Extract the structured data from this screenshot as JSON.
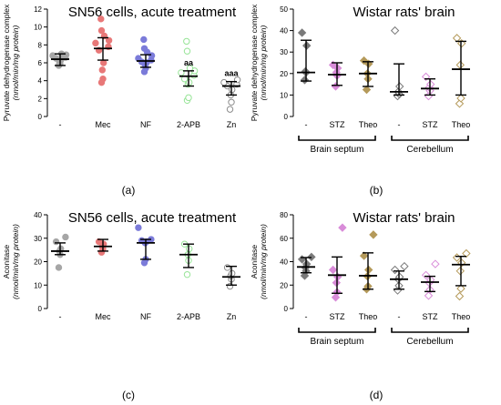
{
  "panel_labels": [
    "(a)",
    "(b)",
    "(c)",
    "(d)"
  ],
  "colors": {
    "control": "#a6a6a6",
    "mec": "#e87878",
    "nf": "#7b7bd9",
    "apb": "#97e497",
    "zn": "#8c8c8c",
    "dia_septum_ctrl": "#7a7a7a",
    "dia_stz": "#d98cd9",
    "dia_theo": "#b59a5a"
  },
  "chart_data": [
    {
      "id": "a",
      "type": "scatter",
      "title": "SN56 cells, acute treatment",
      "ylabel": "Pyruvate dehydrogenase complex",
      "ylabel_sub": "(nmol/min/mg protein)",
      "ylim": [
        0,
        12
      ],
      "yticks": [
        0,
        2,
        4,
        6,
        8,
        10,
        12
      ],
      "categories": [
        "-",
        "Mec",
        "NF",
        "2-APB",
        "Zn"
      ],
      "groups": [
        {
          "name": "-",
          "color": "#a6a6a6",
          "filled": true,
          "shape": "circle",
          "mean": 6.4,
          "lo": 5.7,
          "hi": 7.0,
          "points": [
            5.7,
            5.9,
            6.1,
            6.3,
            6.5,
            6.6,
            6.8,
            6.9,
            7.0
          ]
        },
        {
          "name": "Mec",
          "color": "#e87878",
          "filled": true,
          "shape": "circle",
          "mean": 7.6,
          "lo": 6.3,
          "hi": 8.8,
          "points": [
            3.8,
            4.2,
            5.2,
            6.0,
            7.4,
            7.8,
            8.2,
            8.5,
            9.0,
            9.6,
            10.9
          ]
        },
        {
          "name": "NF",
          "color": "#7b7bd9",
          "filled": true,
          "shape": "circle",
          "mean": 6.2,
          "lo": 5.5,
          "hi": 6.9,
          "points": [
            5.0,
            5.4,
            5.8,
            6.0,
            6.1,
            6.3,
            6.5,
            6.8,
            7.2,
            7.6,
            8.6
          ]
        },
        {
          "name": "2-APB",
          "color": "#97e497",
          "filled": false,
          "shape": "circle",
          "mean": 4.5,
          "lo": 3.4,
          "hi": 5.1,
          "points": [
            1.8,
            2.1,
            3.6,
            3.8,
            4.2,
            4.6,
            4.9,
            5.1,
            5.4,
            7.3,
            8.4
          ],
          "annotation": "aa"
        },
        {
          "name": "Zn",
          "color": "#8c8c8c",
          "filled": false,
          "shape": "circle",
          "mean": 3.4,
          "lo": 2.4,
          "hi": 3.9,
          "points": [
            0.8,
            1.6,
            2.4,
            3.0,
            3.4,
            3.6,
            3.8,
            4.1
          ],
          "annotation": "aaa"
        }
      ]
    },
    {
      "id": "b",
      "type": "scatter",
      "title": "Wistar rats' brain",
      "ylabel": "Pyruvate dehydrogenase complex",
      "ylabel_sub": "(nmol/min/mg protein)",
      "ylim": [
        0,
        50
      ],
      "yticks": [
        0,
        10,
        20,
        30,
        40,
        50
      ],
      "categories": [
        "-",
        "STZ",
        "Theo",
        "-",
        "STZ",
        "Theo"
      ],
      "brackets": [
        "Brain septum",
        "Cerebellum"
      ],
      "groups": [
        {
          "name": "-",
          "color": "#7a7a7a",
          "filled": true,
          "shape": "diamond",
          "mean": 20.5,
          "lo": 16.5,
          "hi": 35.5,
          "points": [
            17.0,
            20.5,
            21.0,
            33.0,
            39.0
          ]
        },
        {
          "name": "STZ",
          "color": "#d98cd9",
          "filled": true,
          "shape": "diamond",
          "mean": 19.5,
          "lo": 14.5,
          "hi": 25.0,
          "points": [
            14.0,
            19.0,
            20.5,
            22.5,
            24.0
          ]
        },
        {
          "name": "Theo",
          "color": "#b59a5a",
          "filled": true,
          "shape": "diamond",
          "mean": 20.0,
          "lo": 14.0,
          "hi": 25.5,
          "points": [
            12.5,
            17.5,
            20.0,
            24.5,
            26.0
          ]
        },
        {
          "name": "-",
          "color": "#7a7a7a",
          "filled": false,
          "shape": "diamond",
          "mean": 11.5,
          "lo": 10.0,
          "hi": 24.5,
          "points": [
            9.5,
            10.5,
            11.5,
            14.0,
            40.0
          ]
        },
        {
          "name": "STZ",
          "color": "#d98cd9",
          "filled": false,
          "shape": "diamond",
          "mean": 13.0,
          "lo": 10.0,
          "hi": 17.5,
          "points": [
            9.5,
            12.0,
            13.5,
            15.0,
            18.5
          ]
        },
        {
          "name": "Theo",
          "color": "#b59a5a",
          "filled": false,
          "shape": "diamond",
          "mean": 22.0,
          "lo": 10.0,
          "hi": 35.0,
          "points": [
            6.0,
            8.5,
            24.0,
            34.0,
            36.5
          ]
        }
      ]
    },
    {
      "id": "c",
      "type": "scatter",
      "title": "SN56 cells, acute treatment",
      "ylabel": "Aconitase",
      "ylabel_sub": "(nmol/min/mg protein)",
      "ylim": [
        0,
        40
      ],
      "yticks": [
        0,
        10,
        20,
        30,
        40
      ],
      "categories": [
        "-",
        "Mec",
        "NF",
        "2-APB",
        "Zn"
      ],
      "groups": [
        {
          "name": "-",
          "color": "#a6a6a6",
          "filled": true,
          "shape": "circle",
          "mean": 24.5,
          "lo": 23.0,
          "hi": 28.0,
          "points": [
            17.5,
            23.0,
            24.5,
            25.5,
            28.5,
            30.5
          ]
        },
        {
          "name": "Mec",
          "color": "#e87878",
          "filled": true,
          "shape": "circle",
          "mean": 26.5,
          "lo": 24.5,
          "hi": 29.5,
          "points": [
            24.0,
            25.5,
            26.5,
            27.5,
            28.5
          ]
        },
        {
          "name": "NF",
          "color": "#7b7bd9",
          "filled": true,
          "shape": "circle",
          "mean": 28.0,
          "lo": 21.0,
          "hi": 29.5,
          "points": [
            19.5,
            21.0,
            28.0,
            28.5,
            29.0,
            29.5,
            34.5
          ]
        },
        {
          "name": "2-APB",
          "color": "#97e497",
          "filled": false,
          "shape": "circle",
          "mean": 23.0,
          "lo": 17.5,
          "hi": 27.5,
          "points": [
            14.5,
            20.5,
            23.0,
            25.5,
            27.5
          ]
        },
        {
          "name": "Zn",
          "color": "#8c8c8c",
          "filled": false,
          "shape": "circle",
          "mean": 13.5,
          "lo": 10.0,
          "hi": 18.0,
          "points": [
            9.5,
            12.5,
            14.0,
            15.0,
            17.5
          ]
        }
      ]
    },
    {
      "id": "d",
      "type": "scatter",
      "title": "Wistar rats' brain",
      "ylabel": "Aconitase",
      "ylabel_sub": "(nmol/min/mg protein)",
      "ylim": [
        0,
        80
      ],
      "yticks": [
        0,
        20,
        40,
        60,
        80
      ],
      "categories": [
        "-",
        "STZ",
        "Theo",
        "-",
        "STZ",
        "Theo"
      ],
      "brackets": [
        "Brain septum",
        "Cerebellum"
      ],
      "groups": [
        {
          "name": "-",
          "color": "#7a7a7a",
          "filled": true,
          "shape": "diamond",
          "mean": 35.5,
          "lo": 30.5,
          "hi": 43.5,
          "points": [
            28.0,
            32.0,
            35.0,
            38.0,
            42.0,
            44.0
          ]
        },
        {
          "name": "STZ",
          "color": "#d98cd9",
          "filled": true,
          "shape": "diamond",
          "mean": 28.5,
          "lo": 13.0,
          "hi": 44.0,
          "points": [
            9.5,
            14.0,
            22.0,
            27.0,
            33.0,
            69.0
          ]
        },
        {
          "name": "Theo",
          "color": "#b59a5a",
          "filled": true,
          "shape": "diamond",
          "mean": 28.0,
          "lo": 16.5,
          "hi": 47.5,
          "points": [
            16.5,
            19.0,
            27.5,
            33.0,
            45.0,
            63.0
          ]
        },
        {
          "name": "-",
          "color": "#7a7a7a",
          "filled": false,
          "shape": "diamond",
          "mean": 25.0,
          "lo": 16.5,
          "hi": 32.0,
          "points": [
            15.5,
            19.5,
            25.0,
            27.0,
            33.0,
            36.0
          ]
        },
        {
          "name": "STZ",
          "color": "#d98cd9",
          "filled": false,
          "shape": "diamond",
          "mean": 22.5,
          "lo": 14.5,
          "hi": 27.5,
          "points": [
            11.0,
            16.0,
            22.0,
            24.5,
            28.5,
            38.0
          ]
        },
        {
          "name": "Theo",
          "color": "#b59a5a",
          "filled": false,
          "shape": "diamond",
          "mean": 37.5,
          "lo": 19.5,
          "hi": 44.5,
          "points": [
            10.5,
            17.0,
            32.0,
            39.0,
            43.5,
            47.0
          ]
        }
      ]
    }
  ]
}
